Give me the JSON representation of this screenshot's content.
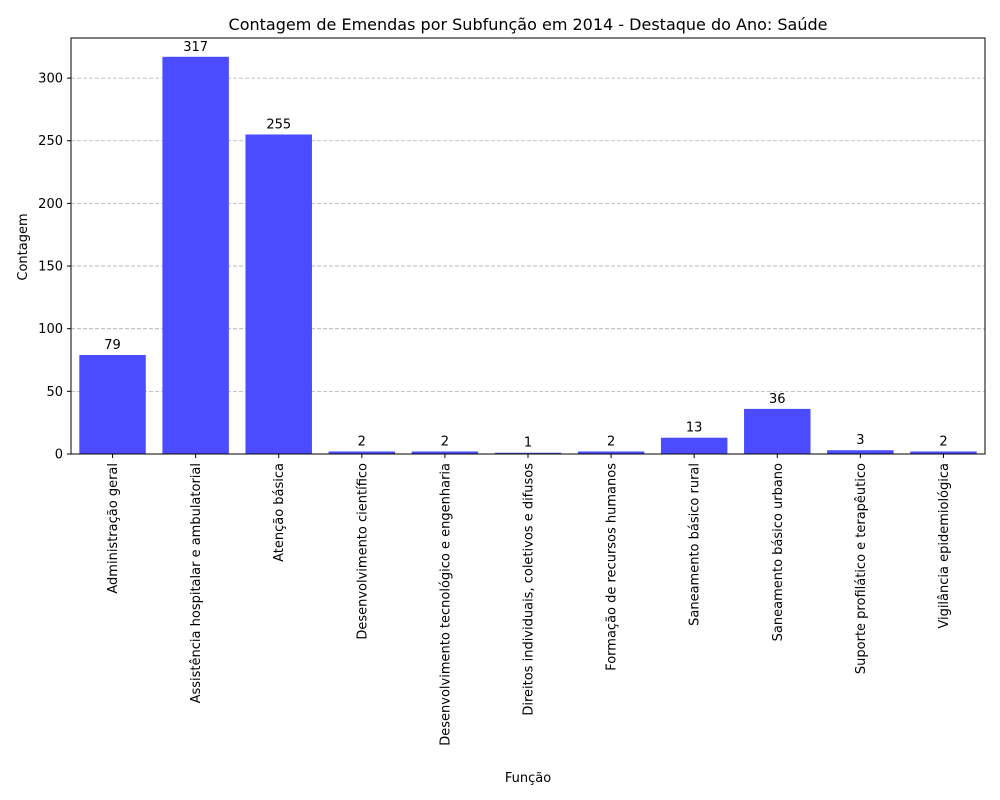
{
  "chart_data": {
    "type": "bar",
    "title": "Contagem de Emendas por Subfunção em 2014 - Destaque do Ano: Saúde",
    "xlabel": "Função",
    "ylabel": "Contagem",
    "categories": [
      "Administração geral",
      "Assistência hospitalar e ambulatorial",
      "Atenção básica",
      "Desenvolvimento científico",
      "Desenvolvimento tecnológico e engenharia",
      "Direitos individuais, coletivos e difusos",
      "Formação de recursos humanos",
      "Saneamento básico rural",
      "Saneamento básico urbano",
      "Suporte profilático e terapêutico",
      "Vigilância epidemiológica"
    ],
    "values": [
      79,
      317,
      255,
      2,
      2,
      1,
      2,
      13,
      36,
      3,
      2
    ],
    "data_labels": [
      "79",
      "317",
      "255",
      "2",
      "2",
      "1",
      "2",
      "13",
      "36",
      "3",
      "2"
    ],
    "ylim": [
      0,
      332
    ],
    "yticks": [
      0,
      50,
      100,
      150,
      200,
      250,
      300
    ],
    "ytick_labels": [
      "0",
      "50",
      "100",
      "150",
      "200",
      "250",
      "300"
    ],
    "grid": "y-dashed",
    "bar_color": "#4b4bff",
    "grid_color": "#b0b0b0"
  }
}
